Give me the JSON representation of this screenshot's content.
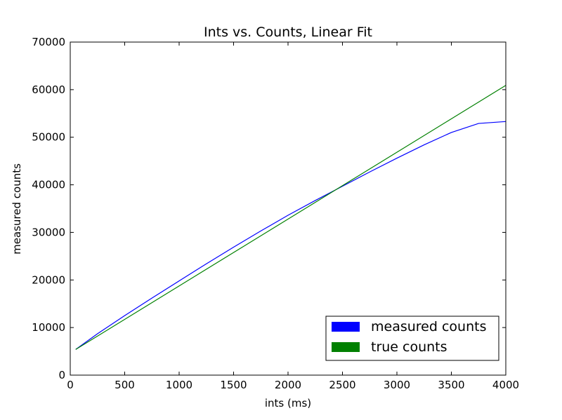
{
  "chart_data": {
    "type": "line",
    "title": "Ints vs. Counts, Linear Fit",
    "xlabel": "ints (ms)",
    "ylabel": "measured counts",
    "xlim": [
      0,
      4000
    ],
    "ylim": [
      0,
      70000
    ],
    "x_ticks": [
      0,
      500,
      1000,
      1500,
      2000,
      2500,
      3000,
      3500,
      4000
    ],
    "y_ticks": [
      0,
      10000,
      20000,
      30000,
      40000,
      50000,
      60000,
      70000
    ],
    "grid": false,
    "legend_position": "lower-right",
    "series": [
      {
        "name": "measured counts",
        "color": "#0000ff",
        "x": [
          50,
          250,
          500,
          750,
          1000,
          1250,
          1500,
          1750,
          2000,
          2250,
          2500,
          2750,
          3000,
          3250,
          3500,
          3750,
          4000
        ],
        "y": [
          5400,
          8700,
          12500,
          16200,
          19800,
          23400,
          26900,
          30300,
          33600,
          36700,
          39700,
          42700,
          45600,
          48400,
          51000,
          52900,
          53300
        ]
      },
      {
        "name": "true counts",
        "color": "#008000",
        "x": [
          50,
          4000
        ],
        "y": [
          5400,
          60900
        ]
      }
    ]
  }
}
